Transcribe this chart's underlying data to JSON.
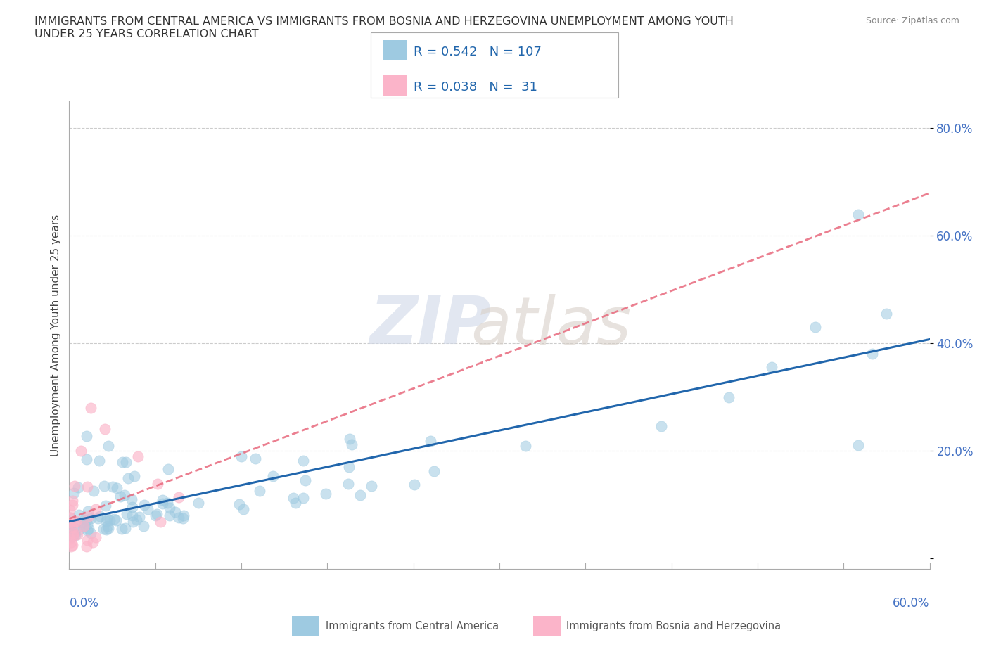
{
  "title": "IMMIGRANTS FROM CENTRAL AMERICA VS IMMIGRANTS FROM BOSNIA AND HERZEGOVINA UNEMPLOYMENT AMONG YOUTH\nUNDER 25 YEARS CORRELATION CHART",
  "source": "Source: ZipAtlas.com",
  "ylabel": "Unemployment Among Youth under 25 years",
  "ytick_vals": [
    0.0,
    0.2,
    0.4,
    0.6,
    0.8
  ],
  "ytick_labels": [
    "",
    "20.0%",
    "40.0%",
    "60.0%",
    "80.0%"
  ],
  "xlim": [
    0.0,
    0.6
  ],
  "ylim": [
    -0.02,
    0.85
  ],
  "legend_label1": "Immigrants from Central America",
  "legend_label2": "Immigrants from Bosnia and Herzegovina",
  "R1": 0.542,
  "N1": 107,
  "R2": 0.038,
  "N2": 31,
  "color1": "#9ecae1",
  "color2": "#fbb4c9",
  "line_color1": "#2166ac",
  "line_color2": "#e8697d",
  "background_color": "#ffffff",
  "watermark_zip": "ZIP",
  "watermark_atlas": "atlas",
  "grid_color": "#cccccc"
}
